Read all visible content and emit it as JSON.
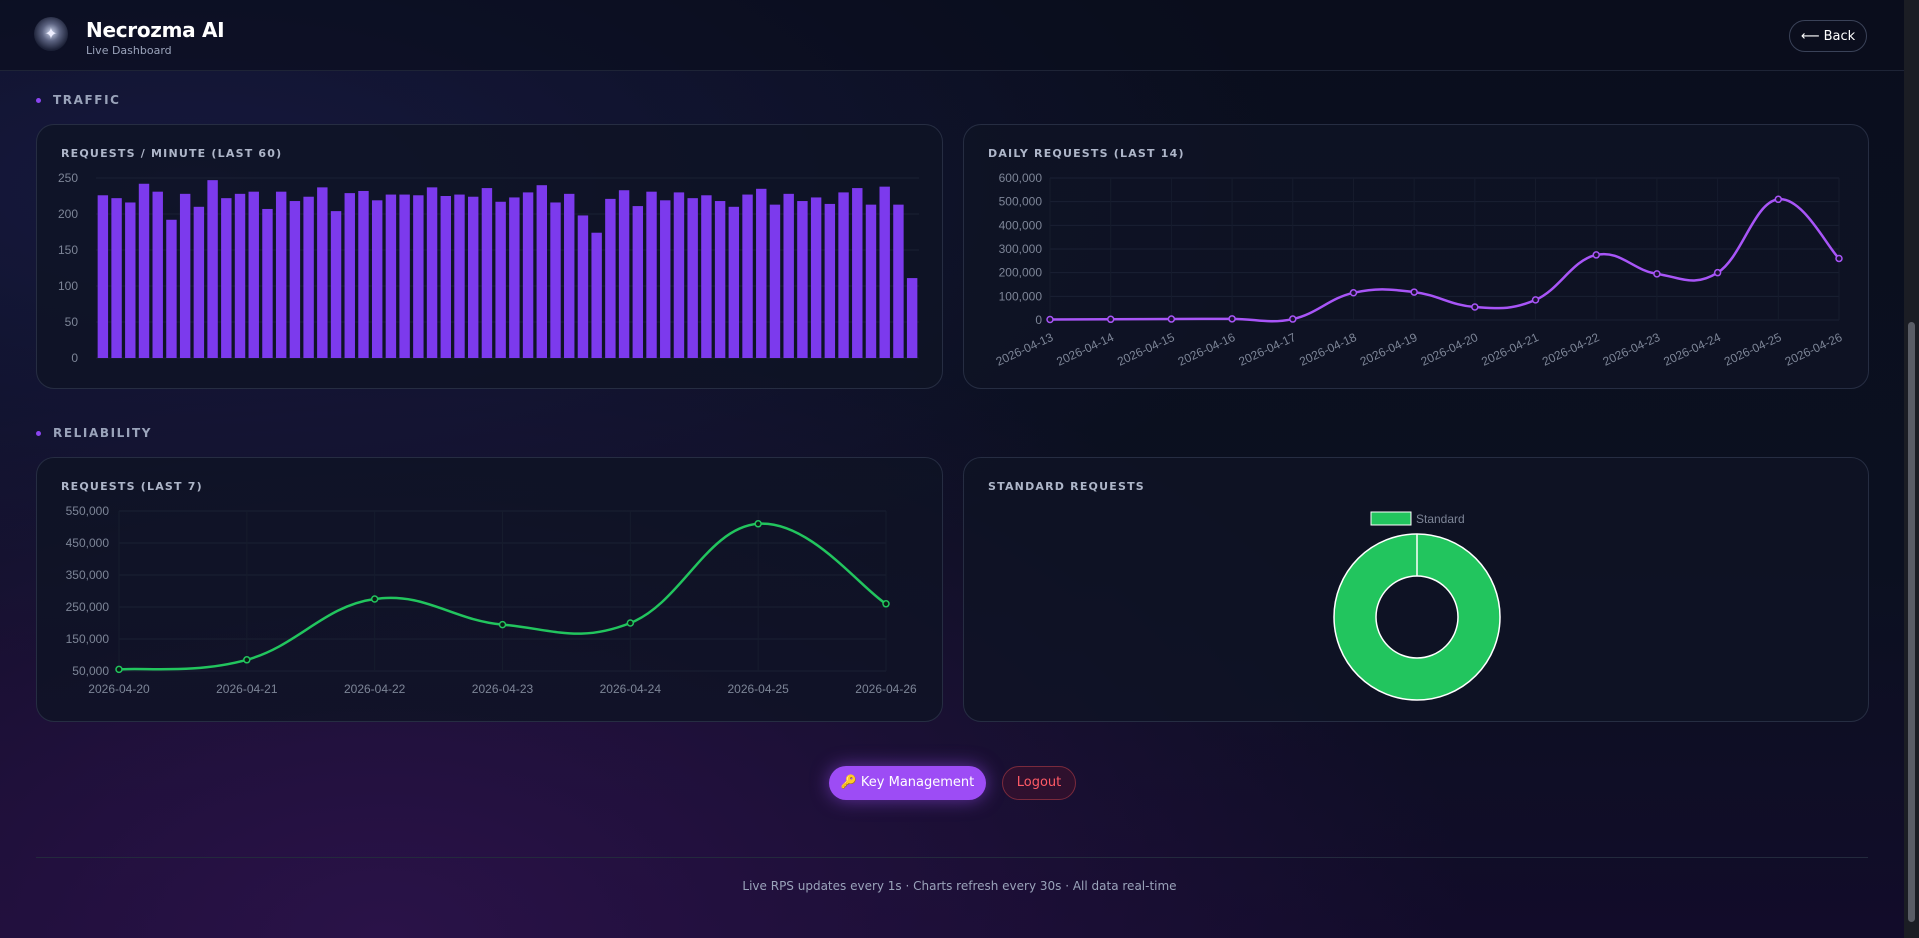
{
  "header": {
    "app_name": "Necrozma AI",
    "subtitle": "Live Dashboard",
    "back_label": "⟵ Back",
    "logo_icon": "necrozma-logo-icon"
  },
  "sections": {
    "traffic": "TRAFFIC",
    "reliability": "RELIABILITY"
  },
  "cards": {
    "rpm_title": "REQUESTS / MINUTE (LAST 60)",
    "daily_title": "DAILY REQUESTS (LAST 14)",
    "weekly_title": "REQUESTS (LAST 7)",
    "standard_title": "STANDARD REQUESTS"
  },
  "actions": {
    "key_icon": "🔑",
    "key_label": "Key Management",
    "logout_label": "Logout"
  },
  "footer": {
    "text": "Live RPS updates every 1s · Charts refresh every 30s · All data real-time"
  },
  "colors": {
    "accent": "#9d4cf5",
    "bar": "#7c3aed",
    "line_purple": "#a855f7",
    "line_green": "#22c55e",
    "logout": "#ff5a66"
  },
  "chart_data": [
    {
      "type": "bar",
      "title": "REQUESTS / MINUTE (LAST 60)",
      "ylim": [
        0,
        250
      ],
      "yticks": [
        0,
        50,
        100,
        150,
        200,
        250
      ],
      "values": [
        226,
        222,
        216,
        242,
        231,
        192,
        228,
        210,
        247,
        222,
        228,
        231,
        207,
        231,
        218,
        224,
        237,
        204,
        229,
        232,
        219,
        227,
        227,
        226,
        237,
        225,
        227,
        224,
        236,
        217,
        223,
        230,
        240,
        216,
        228,
        198,
        174,
        221,
        233,
        211,
        231,
        219,
        230,
        222,
        226,
        218,
        210,
        227,
        235,
        213,
        228,
        218,
        223,
        214,
        230,
        236,
        213,
        238,
        213,
        111
      ],
      "grid": true
    },
    {
      "type": "line",
      "title": "DAILY REQUESTS (LAST 14)",
      "x": [
        "2026-04-13",
        "2026-04-14",
        "2026-04-15",
        "2026-04-16",
        "2026-04-17",
        "2026-04-18",
        "2026-04-19",
        "2026-04-20",
        "2026-04-21",
        "2026-04-22",
        "2026-04-23",
        "2026-04-24",
        "2026-04-25",
        "2026-04-26"
      ],
      "values": [
        2000,
        3000,
        4000,
        5000,
        4000,
        115000,
        118000,
        55000,
        85000,
        275000,
        195000,
        200000,
        510000,
        260000
      ],
      "ylim": [
        0,
        600000
      ],
      "yticks": [
        "0",
        "100,000",
        "200,000",
        "300,000",
        "400,000",
        "500,000",
        "600,000"
      ],
      "grid": true
    },
    {
      "type": "line",
      "title": "REQUESTS (LAST 7)",
      "x": [
        "2026-04-20",
        "2026-04-21",
        "2026-04-22",
        "2026-04-23",
        "2026-04-24",
        "2026-04-25",
        "2026-04-26"
      ],
      "values": [
        55000,
        85000,
        275000,
        195000,
        200000,
        510000,
        260000
      ],
      "ylim": [
        50000,
        550000
      ],
      "yticks": [
        "50,000",
        "150,000",
        "250,000",
        "350,000",
        "450,000",
        "550,000"
      ],
      "grid": true
    },
    {
      "type": "pie",
      "title": "STANDARD REQUESTS",
      "labels": [
        "Standard"
      ],
      "values": [
        100
      ],
      "legend": "top",
      "donut": true
    }
  ]
}
